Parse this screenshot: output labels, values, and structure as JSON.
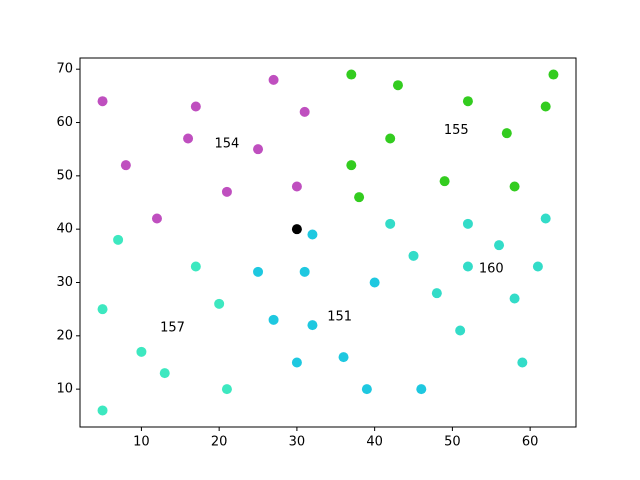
{
  "chart_data": {
    "type": "scatter",
    "xlim": [
      2.1,
      65.9
    ],
    "ylim": [
      2.9,
      72.1
    ],
    "xticks": [
      10,
      20,
      30,
      40,
      50,
      60
    ],
    "yticks": [
      10,
      20,
      30,
      40,
      50,
      60,
      70
    ],
    "grid": false,
    "series": [
      {
        "color": "#bf4fbf",
        "x": [
          5,
          17,
          27,
          31,
          16,
          8,
          25,
          21,
          30,
          12
        ],
        "y": [
          64,
          63,
          68,
          62,
          57,
          52,
          55,
          47,
          48,
          42
        ]
      },
      {
        "color": "#33cc1f",
        "x": [
          37,
          43,
          63,
          52,
          62,
          57,
          42,
          37,
          49,
          58,
          38
        ],
        "y": [
          69,
          67,
          69,
          64,
          63,
          58,
          57,
          52,
          49,
          48,
          46
        ]
      },
      {
        "color": "#1ec8e0",
        "x": [
          32,
          25,
          31,
          40,
          27,
          32,
          30,
          36,
          39,
          46
        ],
        "y": [
          39,
          32,
          32,
          30,
          23,
          22,
          15,
          16,
          10,
          10
        ]
      },
      {
        "color": "#33dcc8",
        "x": [
          42,
          52,
          62,
          56,
          45,
          52,
          61,
          48,
          58,
          51,
          59
        ],
        "y": [
          41,
          41,
          42,
          37,
          35,
          33,
          33,
          28,
          27,
          21,
          15
        ]
      },
      {
        "color": "#3de8c0",
        "x": [
          7,
          17,
          5,
          20,
          10,
          13,
          21,
          5
        ],
        "y": [
          38,
          33,
          25,
          26,
          17,
          13,
          10,
          6
        ]
      },
      {
        "color": "#000000",
        "x": [
          30
        ],
        "y": [
          40
        ]
      }
    ],
    "annotations": [
      {
        "text": "154",
        "x": 21,
        "y": 56
      },
      {
        "text": "155",
        "x": 50.5,
        "y": 58.5
      },
      {
        "text": "160",
        "x": 55,
        "y": 32.5
      },
      {
        "text": "151",
        "x": 35.5,
        "y": 23.5
      },
      {
        "text": "157",
        "x": 14,
        "y": 21.5
      }
    ]
  }
}
